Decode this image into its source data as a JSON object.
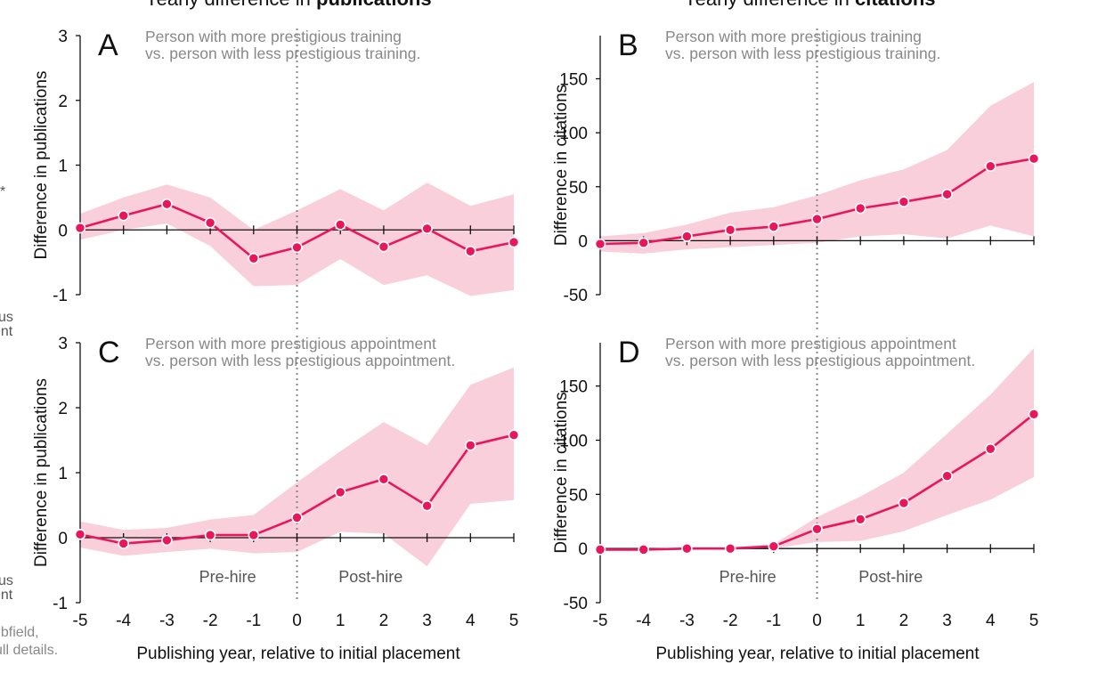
{
  "colors": {
    "accent": "#e8175d",
    "band": "#f9cfdc",
    "axis": "#111111",
    "subtitle": "#888888"
  },
  "headers": {
    "left_prefix": "Yearly difference in ",
    "left_highlight": "publications",
    "right_prefix": "Yearly difference in ",
    "right_highlight": "citations"
  },
  "left_margin_text": {
    "star": "*",
    "us_1": "us",
    "ent_1": "ent",
    "us_2": "us",
    "ent_2": "ent",
    "ubfield": "ubfield,",
    "full_details": "ull details."
  },
  "phase_labels": {
    "pre": "Pre-hire",
    "post": "Post-hire"
  },
  "xlabel": "Publishing year, relative to initial placement",
  "chart_data": [
    {
      "panel": "A",
      "type": "line",
      "subtitle_1": "Person with more prestigious training",
      "subtitle_2": "vs. person with less prestigious training.",
      "ylabel": "Difference in publications",
      "ylim": [
        -1,
        3
      ],
      "yticks": [
        "-1",
        "0",
        "1",
        "2",
        "3"
      ],
      "x": [
        -5,
        -4,
        -3,
        -2,
        -1,
        0,
        1,
        2,
        3,
        4,
        5
      ],
      "xticks": [
        "-5",
        "-4",
        "-3",
        "-2",
        "-1",
        "0",
        "1",
        "2",
        "3",
        "4",
        "5"
      ],
      "values": [
        0.03,
        0.22,
        0.4,
        0.11,
        -0.44,
        -0.27,
        0.08,
        -0.26,
        0.02,
        -0.33,
        -0.19
      ],
      "lower": [
        -0.15,
        0.0,
        0.1,
        -0.25,
        -0.87,
        -0.85,
        -0.45,
        -0.85,
        -0.7,
        -1.02,
        -0.93
      ],
      "upper": [
        0.25,
        0.5,
        0.7,
        0.5,
        0.0,
        0.3,
        0.63,
        0.3,
        0.73,
        0.37,
        0.55
      ],
      "show_phase_labels": false
    },
    {
      "panel": "B",
      "type": "line",
      "subtitle_1": "Person with more prestigious training",
      "subtitle_2": "vs. person with less prestigious training.",
      "ylabel": "Difference in citations",
      "ylim": [
        -50,
        190
      ],
      "yticks": [
        "-50",
        "0",
        "50",
        "100",
        "150"
      ],
      "x": [
        -5,
        -4,
        -3,
        -2,
        -1,
        0,
        1,
        2,
        3,
        4,
        5
      ],
      "xticks": [
        "-5",
        "-4",
        "-3",
        "-2",
        "-1",
        "0",
        "1",
        "2",
        "3",
        "4",
        "5"
      ],
      "values": [
        -3,
        -2,
        4,
        10,
        13,
        20,
        30,
        36,
        43,
        69,
        76
      ],
      "lower": [
        -10,
        -12,
        -8,
        -6,
        -4,
        -2,
        4,
        6,
        2,
        14,
        4
      ],
      "upper": [
        4,
        7,
        15,
        26,
        31,
        42,
        56,
        66,
        84,
        125,
        147
      ],
      "show_phase_labels": false
    },
    {
      "panel": "C",
      "type": "line",
      "subtitle_1": "Person with more prestigious appointment",
      "subtitle_2": "vs. person with less prestigious appointment.",
      "ylabel": "Difference in publications",
      "ylim": [
        -1,
        3
      ],
      "yticks": [
        "-1",
        "0",
        "1",
        "2",
        "3"
      ],
      "x": [
        -5,
        -4,
        -3,
        -2,
        -1,
        0,
        1,
        2,
        3,
        4,
        5
      ],
      "xticks": [
        "-5",
        "-4",
        "-3",
        "-2",
        "-1",
        "0",
        "1",
        "2",
        "3",
        "4",
        "5"
      ],
      "values": [
        0.05,
        -0.09,
        -0.04,
        0.04,
        0.04,
        0.31,
        0.7,
        0.9,
        0.49,
        1.42,
        1.58
      ],
      "lower": [
        -0.15,
        -0.28,
        -0.22,
        -0.17,
        -0.24,
        -0.22,
        0.09,
        0.06,
        -0.44,
        0.52,
        0.58
      ],
      "upper": [
        0.25,
        0.12,
        0.15,
        0.28,
        0.35,
        0.85,
        1.33,
        1.78,
        1.42,
        2.35,
        2.62
      ],
      "show_phase_labels": true
    },
    {
      "panel": "D",
      "type": "line",
      "subtitle_1": "Person with more prestigious appointment",
      "subtitle_2": "vs. person with less prestigious appointment.",
      "ylabel": "Difference in citations",
      "ylim": [
        -50,
        190
      ],
      "yticks": [
        "-50",
        "0",
        "50",
        "100",
        "150"
      ],
      "x": [
        -5,
        -4,
        -3,
        -2,
        -1,
        0,
        1,
        2,
        3,
        4,
        5
      ],
      "xticks": [
        "-5",
        "-4",
        "-3",
        "-2",
        "-1",
        "0",
        "1",
        "2",
        "3",
        "4",
        "5"
      ],
      "values": [
        -1,
        -1,
        0,
        0,
        2,
        18,
        27,
        42,
        67,
        92,
        124
      ],
      "lower": [
        -2,
        -2,
        -1,
        -1,
        0,
        6,
        7,
        16,
        31,
        45,
        66
      ],
      "upper": [
        0,
        0,
        1,
        1,
        4,
        29,
        48,
        70,
        106,
        142,
        185
      ],
      "show_phase_labels": true
    }
  ]
}
